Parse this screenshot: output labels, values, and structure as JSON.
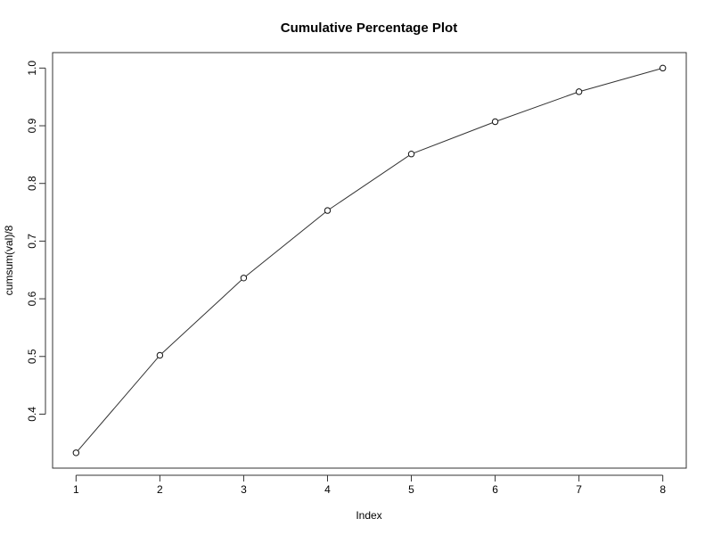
{
  "chart_data": {
    "type": "line",
    "title": "Cumulative Percentage Plot",
    "xlabel": "Index",
    "ylabel": "cumsum(val)/8",
    "x": [
      1,
      2,
      3,
      4,
      5,
      6,
      7,
      8
    ],
    "values": [
      0.333,
      0.502,
      0.636,
      0.753,
      0.851,
      0.907,
      0.959,
      1.0
    ],
    "xticks": [
      "1",
      "2",
      "3",
      "4",
      "5",
      "6",
      "7",
      "8"
    ],
    "yticks": [
      "0.4",
      "0.5",
      "0.6",
      "0.7",
      "0.8",
      "0.9",
      "1.0"
    ],
    "xlim": [
      0.72,
      8.28
    ],
    "ylim": [
      0.3064,
      1.0268
    ],
    "grid": false,
    "marker": "open-circle"
  }
}
